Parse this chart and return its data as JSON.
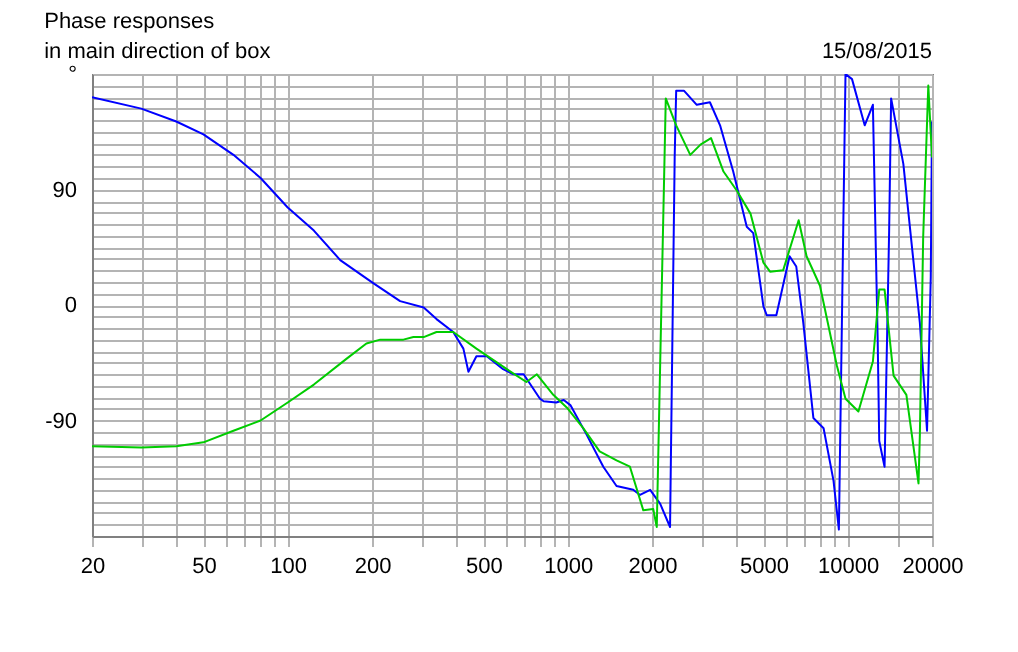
{
  "chart_data": {
    "type": "line",
    "title": "Phase responses",
    "subtitle": "in main direction of box",
    "annotations": [
      "15/08/2015"
    ],
    "log": "x",
    "grid": true,
    "xlim": [
      20,
      20000
    ],
    "ylim": [
      -180,
      180
    ],
    "xticks": [
      20,
      {
        "value": 30,
        "label": null
      },
      {
        "value": 40,
        "label": null
      },
      50,
      {
        "value": 60,
        "label": null
      },
      {
        "value": 70,
        "label": null
      },
      {
        "value": 80,
        "label": null
      },
      {
        "value": 90,
        "label": null
      },
      100,
      200,
      {
        "value": 300,
        "label": null
      },
      {
        "value": 400,
        "label": null
      },
      500,
      {
        "value": 600,
        "label": null
      },
      {
        "value": 700,
        "label": null
      },
      {
        "value": 800,
        "label": null
      },
      {
        "value": 900,
        "label": null
      },
      1000,
      2000,
      {
        "value": 3000,
        "label": null
      },
      {
        "value": 4000,
        "label": null
      },
      5000,
      {
        "value": 6000,
        "label": null
      },
      {
        "value": 7000,
        "label": null
      },
      {
        "value": 8000,
        "label": null
      },
      {
        "value": 9000,
        "label": null
      },
      10000,
      {
        "value": 15000,
        "label": null
      },
      20000
    ],
    "yticks": [
      {
        "value": -180,
        "label": null
      },
      {
        "value": -171,
        "label": null
      },
      {
        "value": -162,
        "label": null
      },
      {
        "value": -153,
        "label": null
      },
      {
        "value": -144,
        "label": null
      },
      {
        "value": -135,
        "label": null
      },
      {
        "value": -126,
        "label": null
      },
      {
        "value": -117,
        "label": null
      },
      {
        "value": -108,
        "label": null
      },
      {
        "value": -99,
        "label": null
      },
      -90,
      {
        "value": -81,
        "label": null
      },
      {
        "value": -72,
        "label": null
      },
      {
        "value": -63,
        "label": null
      },
      {
        "value": -54,
        "label": null
      },
      {
        "value": -45,
        "label": null
      },
      {
        "value": -36,
        "label": null
      },
      {
        "value": -27,
        "label": null
      },
      {
        "value": -18,
        "label": null
      },
      {
        "value": -9,
        "label": null
      },
      0,
      {
        "value": 9,
        "label": null
      },
      {
        "value": 18,
        "label": null
      },
      {
        "value": 27,
        "label": null
      },
      {
        "value": 36,
        "label": null
      },
      {
        "value": 45,
        "label": null
      },
      {
        "value": 54,
        "label": null
      },
      {
        "value": 63,
        "label": null
      },
      {
        "value": 72,
        "label": null
      },
      {
        "value": 81,
        "label": null
      },
      90,
      {
        "value": 99,
        "label": null
      },
      {
        "value": 108,
        "label": null
      },
      {
        "value": 117,
        "label": null
      },
      {
        "value": 126,
        "label": null
      },
      {
        "value": 135,
        "label": null
      },
      {
        "value": 144,
        "label": null
      },
      {
        "value": 153,
        "label": null
      },
      {
        "value": 162,
        "label": null
      },
      {
        "value": 171,
        "label": null
      },
      {
        "value": 180,
        "label": "°"
      }
    ],
    "series": [
      {
        "color": "#0000ff",
        "x": [
          20,
          30,
          40,
          50,
          64,
          80,
          100,
          124,
          154,
          202,
          252,
          306,
          340,
          390,
          424,
          442,
          472,
          514,
          588,
          640,
          696,
          796,
          820,
          910,
          968,
          1022,
          1168,
          1340,
          1494,
          1714,
          1812,
          1970,
          2140,
          2320,
          2410,
          2440,
          2600,
          2890,
          3220,
          3500,
          3900,
          4360,
          4600,
          5000,
          5140,
          5560,
          6200,
          6550,
          6940,
          7540,
          8200,
          8900,
          9300,
          9820,
          10360,
          11500,
          12300,
          12800,
          12960,
          13540,
          14060,
          14290,
          15800,
          18100,
          19200,
          19800,
          20000
        ],
        "values": [
          162,
          153,
          143,
          133,
          117,
          99,
          76,
          58,
          35,
          17,
          3,
          -2,
          -11,
          -21,
          -34,
          -52,
          -40,
          -40,
          -50,
          -54,
          -54,
          -73,
          -75,
          -76,
          -74,
          -78,
          -101,
          -126,
          -141,
          -144,
          -148,
          -144,
          -155,
          -173,
          115,
          167,
          167,
          156,
          158,
          140,
          104,
          61,
          56,
          -1,
          -8,
          -8,
          38,
          30,
          -14,
          -88,
          -96,
          -137,
          -175,
          180,
          176,
          140,
          156,
          -29,
          -106,
          -126,
          58,
          161,
          110,
          -14,
          -98,
          22,
          143
        ]
      },
      {
        "color": "#00cc00",
        "x": [
          20,
          30,
          40,
          50,
          64,
          80,
          100,
          124,
          162,
          191,
          214,
          259,
          281,
          306,
          340,
          390,
          472,
          606,
          712,
          776,
          888,
          994,
          1136,
          1300,
          1494,
          1668,
          1862,
          2020,
          2080,
          2140,
          2240,
          2440,
          2740,
          2980,
          3250,
          3600,
          4020,
          4500,
          5000,
          5280,
          5880,
          6680,
          7130,
          7960,
          9140,
          9820,
          10920,
          12300,
          12960,
          13540,
          14580,
          16200,
          17900,
          18100,
          18600,
          19400,
          20000
        ],
        "values": [
          -110,
          -111,
          -110,
          -107,
          -98,
          -90,
          -76,
          -62,
          -42,
          -30,
          -27,
          -27,
          -25,
          -25,
          -21,
          -21,
          -34,
          -50,
          -60,
          -54,
          -70,
          -80,
          -96,
          -114,
          -121,
          -126,
          -160,
          -159,
          -173,
          -44,
          161,
          140,
          117,
          125,
          130,
          104,
          89,
          71,
          33,
          26,
          27,
          66,
          38,
          15,
          -47,
          -73,
          -83,
          -44,
          12,
          12,
          -55,
          -70,
          -139,
          -101,
          53,
          171,
          115
        ]
      }
    ]
  }
}
